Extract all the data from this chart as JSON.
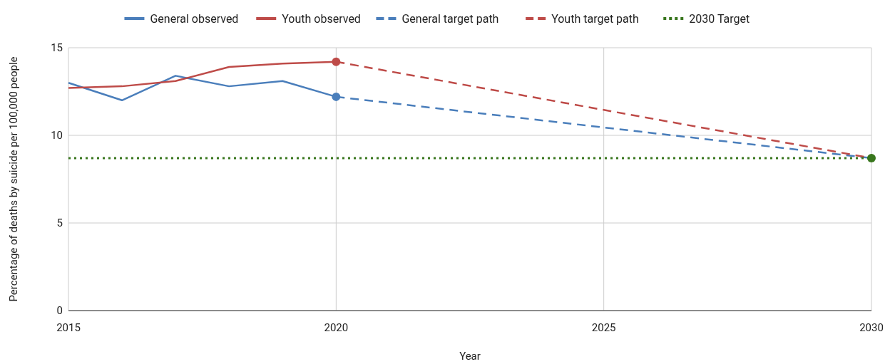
{
  "chart_data": {
    "type": "line",
    "xlabel": "Year",
    "ylabel": "Percentage of deaths by suicide per 100,000 people",
    "xlim": [
      2015,
      2030
    ],
    "xticks": [
      2015,
      2020,
      2025,
      2030
    ],
    "ylim": [
      0,
      15
    ],
    "yticks": [
      0,
      5,
      10,
      15
    ],
    "grid": true,
    "legend": "top",
    "series": [
      {
        "name": "General observed",
        "color": "#4a7ebb",
        "x": [
          2015,
          2016,
          2017,
          2018,
          2019,
          2020
        ],
        "values": [
          13.0,
          12.0,
          13.4,
          12.8,
          13.1,
          12.2
        ],
        "line_style": "solid"
      },
      {
        "name": "Youth observed",
        "color": "#be4b48",
        "x": [
          2015,
          2016,
          2017,
          2018,
          2019,
          2020
        ],
        "values": [
          12.7,
          12.8,
          13.1,
          13.9,
          14.1,
          14.2
        ],
        "line_style": "solid"
      },
      {
        "name": "General target path",
        "color": "#4a7ebb",
        "x": [
          2020,
          2030
        ],
        "values": [
          12.2,
          8.7
        ],
        "line_style": "dashed"
      },
      {
        "name": "Youth target path",
        "color": "#be4b48",
        "x": [
          2020,
          2030
        ],
        "values": [
          14.2,
          8.7
        ],
        "line_style": "dashed"
      },
      {
        "name": "2030 Target",
        "color": "#38761d",
        "x": [
          2015,
          2030
        ],
        "values": [
          8.7,
          8.7
        ],
        "line_style": "dotted"
      },
      {
        "type": "scatter",
        "color": "#4a7ebb",
        "x": [
          2020
        ],
        "values": [
          12.2
        ],
        "marker": "circle"
      },
      {
        "type": "scatter",
        "color": "#be4b48",
        "x": [
          2020
        ],
        "values": [
          14.2
        ],
        "marker": "circle"
      },
      {
        "type": "scatter",
        "color": "#38761d",
        "x": [
          2030
        ],
        "values": [
          8.7
        ],
        "marker": "circle"
      }
    ]
  }
}
